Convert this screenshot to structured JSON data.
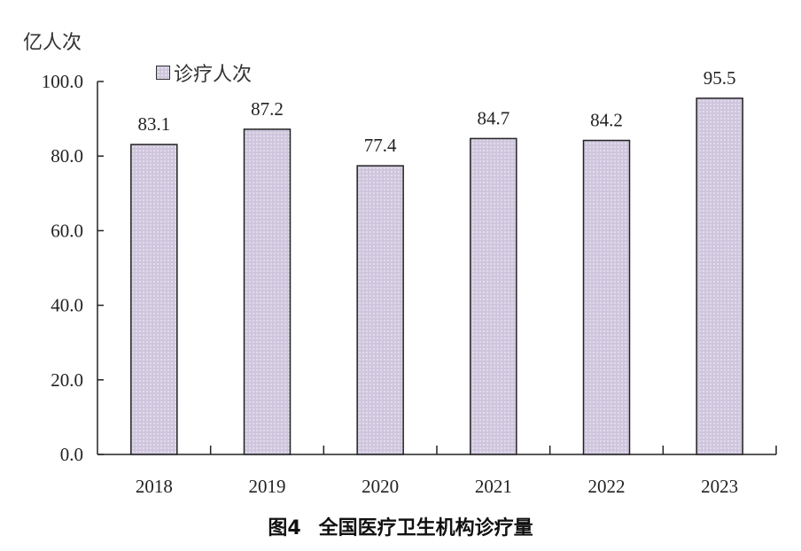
{
  "chart_data": {
    "type": "bar",
    "title": "图4　全国医疗卫生机构诊疗量",
    "figure_label": "图4",
    "title_text": "全国医疗卫生机构诊疗量",
    "ylabel": "亿人次",
    "xlabel": "",
    "categories": [
      "2018",
      "2019",
      "2020",
      "2021",
      "2022",
      "2023"
    ],
    "series": [
      {
        "name": "诊疗人次",
        "values": [
          83.1,
          87.2,
          77.4,
          84.7,
          84.2,
          95.5
        ]
      }
    ],
    "data_labels": [
      "83.1",
      "87.2",
      "77.4",
      "84.7",
      "84.2",
      "95.5"
    ],
    "ylim": [
      0,
      100
    ],
    "yticks": [
      "0.0",
      "20.0",
      "40.0",
      "60.0",
      "80.0",
      "100.0"
    ],
    "grid": false,
    "legend_position": "top-left",
    "bar_fill": "#cfc6dd",
    "bar_stroke": "#222222"
  }
}
